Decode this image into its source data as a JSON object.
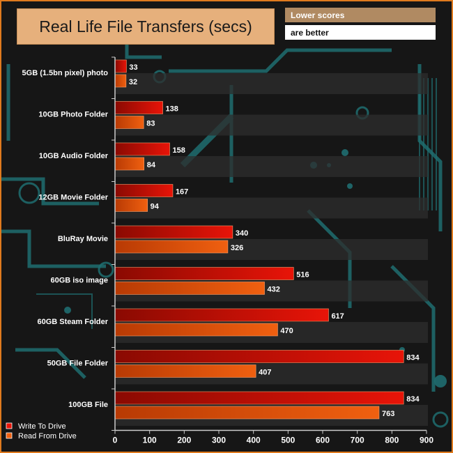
{
  "chart_data": {
    "type": "bar",
    "orientation": "horizontal",
    "title": "Real Life File Transfers (secs)",
    "notes": [
      "Lower scores",
      "are better"
    ],
    "categories": [
      "5GB (1.5bn pixel) photo",
      "10GB Photo Folder",
      "10GB Audio Folder",
      "12GB Movie Folder",
      "BluRay Movie",
      "60GB iso image",
      "60GB Steam Folder",
      "50GB File Folder",
      "100GB File"
    ],
    "series": [
      {
        "name": "Write To  Drive",
        "values": [
          33,
          138,
          158,
          167,
          340,
          516,
          617,
          834,
          834
        ]
      },
      {
        "name": "Read From  Drive",
        "values": [
          32,
          83,
          84,
          94,
          326,
          432,
          470,
          407,
          763
        ]
      }
    ],
    "xlim": [
      0,
      900
    ],
    "xticks": [
      0,
      100,
      200,
      300,
      400,
      500,
      600,
      700,
      800,
      900
    ],
    "xlabel": "",
    "ylabel": "",
    "legend_position": "bottom-left",
    "colors": {
      "write": "#e81408",
      "write_dark": "#8a0a02",
      "read": "#f06010",
      "read_dark": "#b83a04",
      "title_bg": "#e6b07c",
      "note_bg": "#b08a62",
      "border": "#e07a1e",
      "circuit": "#1f6d70"
    }
  }
}
